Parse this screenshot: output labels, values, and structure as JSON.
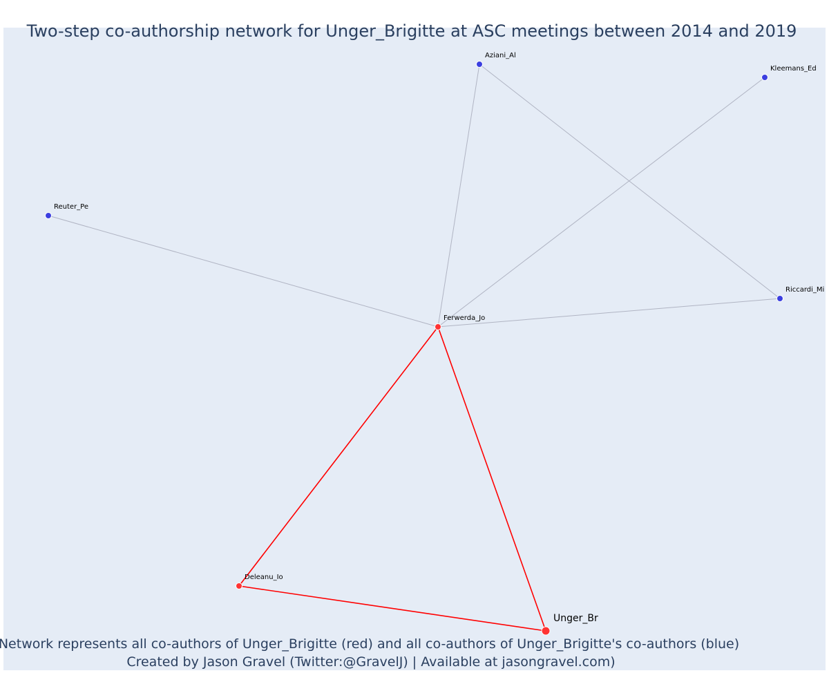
{
  "title": "Two-step co-authorship network for Unger_Brigitte at ASC meetings between 2014 and 2019",
  "footer": {
    "line1": "Network represents all co-authors of Unger_Brigitte (red) and all co-authors of Unger_Brigitte's co-authors (blue)",
    "line2": "Created by Jason Gravel (Twitter:@GravelJ) | Available at jasongravel.com)"
  },
  "colors": {
    "background": "#e5ecf6",
    "red": "#ff0000",
    "blue": "#3b3fe0",
    "blue_edge": "#b0b4c3",
    "text": "#2a3f5f"
  },
  "nodes": [
    {
      "id": "Unger_Br",
      "label": "Unger_Br",
      "group": "red",
      "ego": true
    },
    {
      "id": "Ferwerda_Jo",
      "label": "Ferwerda_Jo",
      "group": "red"
    },
    {
      "id": "Deleanu_Io",
      "label": "Deleanu_Io",
      "group": "red"
    },
    {
      "id": "Aziani_Al",
      "label": "Aziani_Al",
      "group": "blue"
    },
    {
      "id": "Kleemans_Ed",
      "label": "Kleemans_Ed",
      "group": "blue"
    },
    {
      "id": "Reuter_Pe",
      "label": "Reuter_Pe",
      "group": "blue"
    },
    {
      "id": "Riccardi_Mi",
      "label": "Riccardi_Mi",
      "group": "blue"
    }
  ],
  "edges": [
    {
      "source": "Unger_Br",
      "target": "Ferwerda_Jo",
      "group": "red"
    },
    {
      "source": "Unger_Br",
      "target": "Deleanu_Io",
      "group": "red"
    },
    {
      "source": "Deleanu_Io",
      "target": "Ferwerda_Jo",
      "group": "red"
    },
    {
      "source": "Ferwerda_Jo",
      "target": "Aziani_Al",
      "group": "blue"
    },
    {
      "source": "Ferwerda_Jo",
      "target": "Kleemans_Ed",
      "group": "blue"
    },
    {
      "source": "Ferwerda_Jo",
      "target": "Reuter_Pe",
      "group": "blue"
    },
    {
      "source": "Ferwerda_Jo",
      "target": "Riccardi_Mi",
      "group": "blue"
    },
    {
      "source": "Aziani_Al",
      "target": "Riccardi_Mi",
      "group": "blue"
    }
  ]
}
